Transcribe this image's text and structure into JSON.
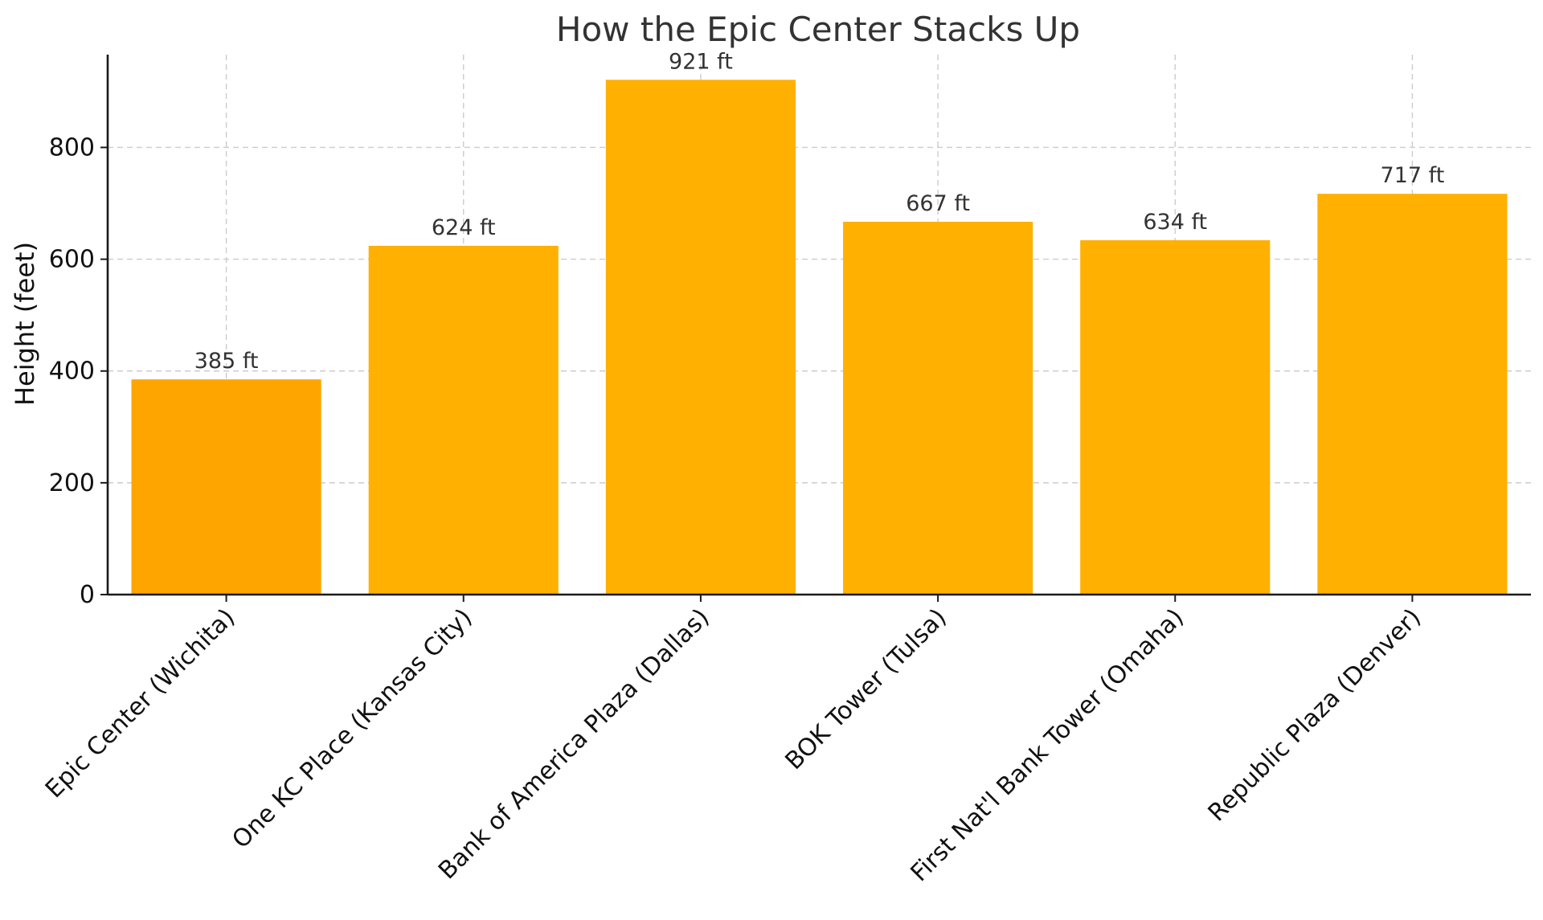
{
  "chart_data": {
    "type": "bar",
    "title": "How the Epic Center Stacks Up",
    "xlabel": "",
    "ylabel": "Height (feet)",
    "categories": [
      "Epic Center (Wichita)",
      "One KC Place (Kansas City)",
      "Bank of America Plaza (Dallas)",
      "BOK Tower (Tulsa)",
      "First Nat'l Bank Tower (Omaha)",
      "Republic Plaza (Denver)"
    ],
    "values": [
      385,
      624,
      921,
      667,
      634,
      717
    ],
    "data_labels": [
      "385 ft",
      "624 ft",
      "921 ft",
      "667 ft",
      "634 ft",
      "717 ft"
    ],
    "bar_colors": [
      "#ffa500",
      "#ffb000",
      "#ffb000",
      "#ffb000",
      "#ffb000",
      "#ffb000"
    ],
    "highlight_category": "Epic Center (Wichita)",
    "ylim": [
      0,
      966
    ],
    "yticks": [
      0,
      200,
      400,
      600,
      800
    ],
    "grid": true,
    "legend": "none"
  }
}
